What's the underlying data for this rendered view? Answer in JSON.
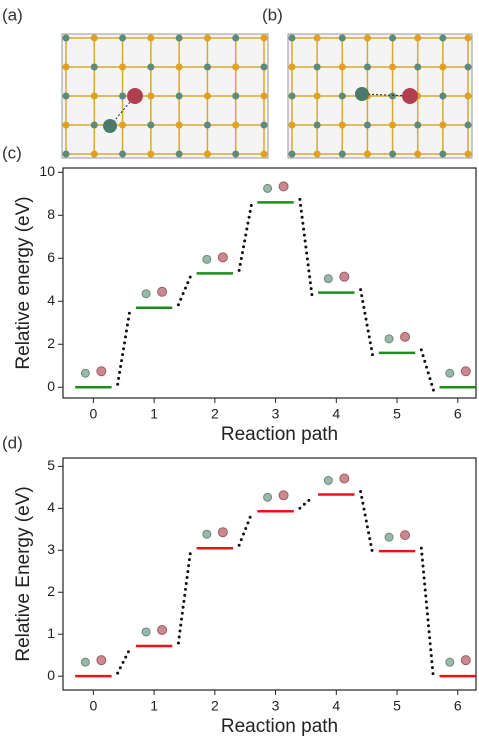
{
  "labels": [
    "(a)",
    "(b)"
  ],
  "chart_data": [
    {
      "type": "level",
      "panel_label": "(c)",
      "xlabel": "Reaction path",
      "ylabel": "Relative energy (eV)",
      "x": [
        0,
        1,
        2,
        3,
        4,
        5,
        6
      ],
      "values": [
        0,
        3.7,
        5.3,
        8.6,
        4.4,
        1.6,
        0
      ],
      "color": "#1e8c1e",
      "xlim": [
        -0.5,
        6.3
      ],
      "ylim": [
        -0.5,
        10.2
      ],
      "xticks": [
        0,
        1,
        2,
        3,
        4,
        5,
        6
      ],
      "yticks": [
        0,
        2,
        4,
        6,
        8,
        10
      ]
    },
    {
      "type": "level",
      "panel_label": "(d)",
      "xlabel": "Reaction path",
      "ylabel": "Relative Energy (eV)",
      "x": [
        0,
        1,
        2,
        3,
        4,
        5,
        6
      ],
      "values": [
        0,
        0.72,
        3.05,
        3.93,
        4.33,
        2.98,
        0
      ],
      "color": "#e8141a",
      "xlim": [
        -0.5,
        6.3
      ],
      "ylim": [
        -0.33,
        5.2
      ],
      "xticks": [
        0,
        1,
        2,
        3,
        4,
        5,
        6
      ],
      "yticks": [
        0,
        1,
        2,
        3,
        4,
        5
      ]
    }
  ]
}
